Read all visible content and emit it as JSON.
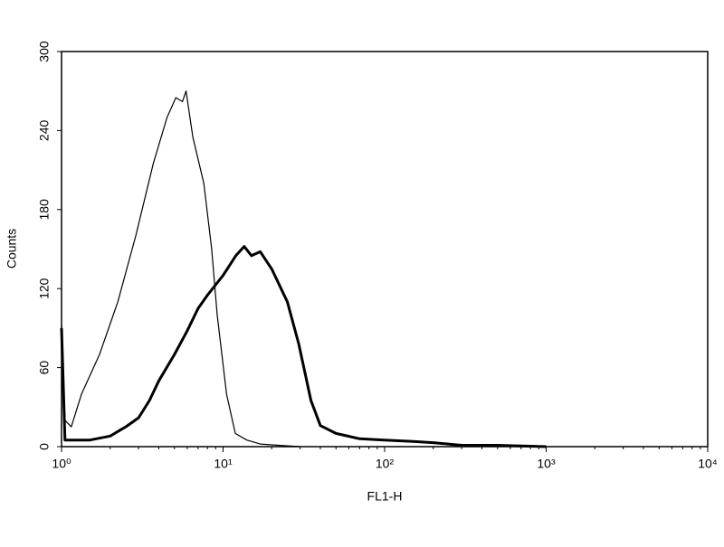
{
  "chart_data": {
    "type": "line",
    "xlabel": "FL1-H",
    "ylabel": "Counts",
    "xscale": "log",
    "xlim": [
      1,
      10000
    ],
    "xticks": [
      {
        "value": 1,
        "label": "10⁰"
      },
      {
        "value": 10,
        "label": "10¹"
      },
      {
        "value": 100,
        "label": "10²"
      },
      {
        "value": 1000,
        "label": "10³"
      },
      {
        "value": 10000,
        "label": "10⁴"
      }
    ],
    "ylim": [
      0,
      300
    ],
    "yticks": [
      0,
      60,
      120,
      180,
      240,
      300
    ],
    "series": [
      {
        "color": "#000000",
        "width": 1.2,
        "x": [
          1.0,
          1.05,
          1.15,
          1.33,
          1.72,
          2.23,
          2.88,
          3.7,
          4.5,
          5.1,
          5.6,
          5.9,
          6.5,
          7.6,
          8.5,
          9.2,
          10.5,
          11.9,
          14,
          17,
          22,
          30
        ],
        "values": [
          92,
          20,
          15,
          40,
          70,
          110,
          160,
          215,
          250,
          265,
          262,
          270,
          235,
          200,
          150,
          100,
          40,
          10,
          5,
          2,
          1,
          0
        ]
      },
      {
        "color": "#000000",
        "width": 3,
        "x": [
          1.0,
          1.05,
          1.5,
          2,
          2.5,
          3,
          3.5,
          4,
          5,
          6,
          7,
          8,
          10,
          12,
          13.5,
          15,
          17,
          20,
          25,
          29.4,
          35,
          40,
          50,
          70,
          100,
          150,
          200,
          300,
          500,
          1000
        ],
        "values": [
          90,
          5,
          5,
          8,
          15,
          22,
          35,
          50,
          70,
          88,
          105,
          115,
          130,
          145,
          152,
          145,
          148,
          135,
          110,
          78,
          35,
          16,
          10,
          6,
          5,
          4,
          3,
          1,
          1,
          0
        ]
      }
    ]
  }
}
